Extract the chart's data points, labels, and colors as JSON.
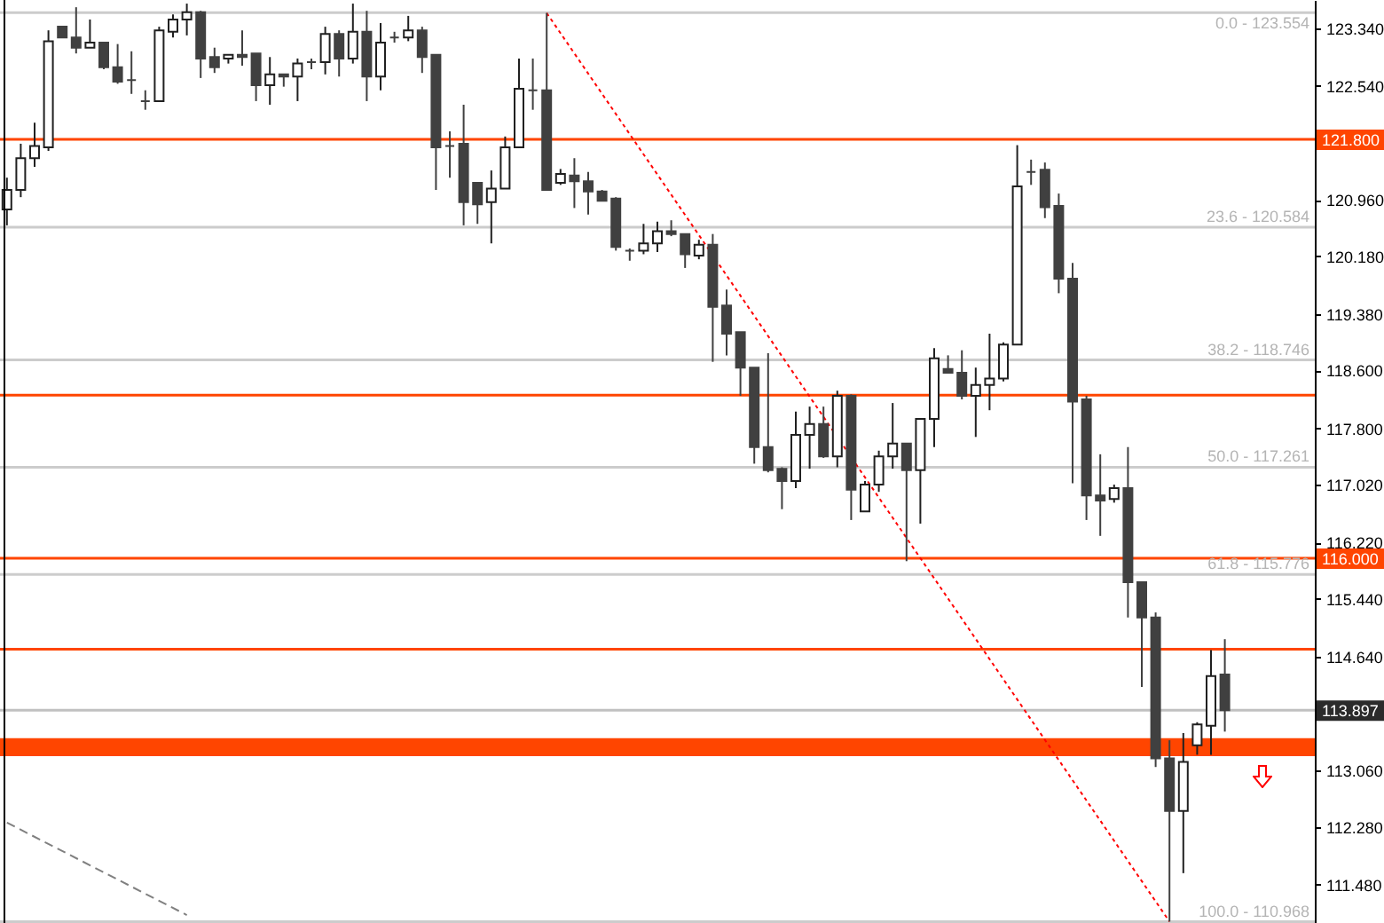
{
  "chart_data": {
    "type": "candlestick",
    "categories": [
      null,
      null,
      null,
      null,
      null,
      null,
      null,
      null,
      null,
      null,
      null,
      null,
      null,
      null,
      null,
      null,
      null,
      null,
      null,
      null,
      null,
      null,
      null,
      null,
      null,
      null,
      null,
      null,
      null,
      null,
      null,
      null,
      null,
      null,
      null,
      null,
      null,
      null,
      null,
      null,
      null,
      null,
      null,
      null,
      null,
      null,
      null,
      null,
      null,
      null,
      null,
      null,
      null,
      null,
      null,
      null,
      null,
      null,
      null,
      null,
      null,
      null,
      null,
      null,
      null,
      null,
      null,
      null,
      null,
      null,
      null,
      null,
      null,
      null,
      null,
      null,
      null,
      null,
      null,
      null,
      null,
      null,
      null,
      null,
      null,
      null,
      null,
      null,
      null,
      null,
      null,
      null,
      null,
      null,
      null
    ],
    "ohlc": [
      [
        120.83,
        121.27,
        120.61,
        121.1
      ],
      [
        121.1,
        121.74,
        121.0,
        121.54
      ],
      [
        121.54,
        122.03,
        121.42,
        121.71
      ],
      [
        121.69,
        123.31,
        121.64,
        123.16
      ],
      [
        123.36,
        123.36,
        123.21,
        123.21
      ],
      [
        123.21,
        123.63,
        122.99,
        123.07
      ],
      [
        123.07,
        123.46,
        123.07,
        123.14
      ],
      [
        123.14,
        123.14,
        122.77,
        122.8
      ],
      [
        122.8,
        123.12,
        122.57,
        122.6
      ],
      [
        122.62,
        123.02,
        122.43,
        122.62
      ],
      [
        122.33,
        122.48,
        122.21,
        122.33
      ],
      [
        122.33,
        123.36,
        122.33,
        123.31
      ],
      [
        123.29,
        123.53,
        123.21,
        123.46
      ],
      [
        123.46,
        123.68,
        123.24,
        123.56
      ],
      [
        123.56,
        123.58,
        122.65,
        122.92
      ],
      [
        122.94,
        123.07,
        122.72,
        122.8
      ],
      [
        122.92,
        122.97,
        122.85,
        122.97
      ],
      [
        122.97,
        123.31,
        122.82,
        122.94
      ],
      [
        122.99,
        122.99,
        122.33,
        122.55
      ],
      [
        122.55,
        122.94,
        122.28,
        122.7
      ],
      [
        122.7,
        122.7,
        122.53,
        122.67
      ],
      [
        122.67,
        122.92,
        122.33,
        122.85
      ],
      [
        122.87,
        122.92,
        122.77,
        122.87
      ],
      [
        122.87,
        123.36,
        122.7,
        123.26
      ],
      [
        123.26,
        123.31,
        122.67,
        122.92
      ],
      [
        122.92,
        123.68,
        122.85,
        123.29
      ],
      [
        123.29,
        123.58,
        122.33,
        122.67
      ],
      [
        122.67,
        123.41,
        122.48,
        123.14
      ],
      [
        123.21,
        123.29,
        123.14,
        123.21
      ],
      [
        123.21,
        123.51,
        123.16,
        123.31
      ],
      [
        123.31,
        123.36,
        122.72,
        122.94
      ],
      [
        122.97,
        122.97,
        121.1,
        121.69
      ],
      [
        121.71,
        121.91,
        121.27,
        121.71
      ],
      [
        121.74,
        122.28,
        120.61,
        120.93
      ],
      [
        121.2,
        121.2,
        120.63,
        120.9
      ],
      [
        120.93,
        121.37,
        120.36,
        121.12
      ],
      [
        121.12,
        121.84,
        121.12,
        121.69
      ],
      [
        121.69,
        122.92,
        121.69,
        122.5
      ],
      [
        122.48,
        122.92,
        122.21,
        122.48
      ],
      [
        122.48,
        123.55,
        121.1,
        121.1
      ],
      [
        121.2,
        121.39,
        121.17,
        121.32
      ],
      [
        121.3,
        121.54,
        120.85,
        121.22
      ],
      [
        121.22,
        121.35,
        120.76,
        121.08
      ],
      [
        121.08,
        121.1,
        120.95,
        120.95
      ],
      [
        120.98,
        121.0,
        120.26,
        120.31
      ],
      [
        120.26,
        120.29,
        120.12,
        120.26
      ],
      [
        120.26,
        120.63,
        120.21,
        120.36
      ],
      [
        120.36,
        120.66,
        120.24,
        120.53
      ],
      [
        120.53,
        120.68,
        120.46,
        120.49
      ],
      [
        120.49,
        120.49,
        120.02,
        120.21
      ],
      [
        120.19,
        120.41,
        120.14,
        120.34
      ],
      [
        120.34,
        120.49,
        118.72,
        119.48
      ],
      [
        119.5,
        119.72,
        118.81,
        119.11
      ],
      [
        119.13,
        119.13,
        118.25,
        118.64
      ],
      [
        118.64,
        118.64,
        117.31,
        117.54
      ],
      [
        117.54,
        118.84,
        117.19,
        117.22
      ],
      [
        117.24,
        117.26,
        116.68,
        117.07
      ],
      [
        117.07,
        118.03,
        116.97,
        117.71
      ],
      [
        117.71,
        118.1,
        117.24,
        117.86
      ],
      [
        117.86,
        118.1,
        117.39,
        117.41
      ],
      [
        117.41,
        118.32,
        117.26,
        118.25
      ],
      [
        118.25,
        118.27,
        116.53,
        116.95
      ],
      [
        116.65,
        117.07,
        116.65,
        117.02
      ],
      [
        117.02,
        117.49,
        116.92,
        117.41
      ],
      [
        117.41,
        118.15,
        117.24,
        117.59
      ],
      [
        117.59,
        117.59,
        115.96,
        117.22
      ],
      [
        117.22,
        117.93,
        116.48,
        117.93
      ],
      [
        117.93,
        118.91,
        117.54,
        118.77
      ],
      [
        118.62,
        118.81,
        118.57,
        118.57
      ],
      [
        118.57,
        118.88,
        118.2,
        118.25
      ],
      [
        118.25,
        118.64,
        117.68,
        118.4
      ],
      [
        118.4,
        119.11,
        118.05,
        118.49
      ],
      [
        118.49,
        118.99,
        118.45,
        118.96
      ],
      [
        118.96,
        121.72,
        118.96,
        121.15
      ],
      [
        121.35,
        121.52,
        121.17,
        121.35
      ],
      [
        121.38,
        121.48,
        120.71,
        120.86
      ],
      [
        120.88,
        121.05,
        119.67,
        119.87
      ],
      [
        119.87,
        120.09,
        117.04,
        118.17
      ],
      [
        118.2,
        118.25,
        116.53,
        116.87
      ],
      [
        116.87,
        117.44,
        116.31,
        116.8
      ],
      [
        116.82,
        117.02,
        116.77,
        116.97
      ],
      [
        116.97,
        117.54,
        115.18,
        115.67
      ],
      [
        115.67,
        115.67,
        114.22,
        115.18
      ],
      [
        115.18,
        115.25,
        113.11,
        113.23
      ],
      [
        113.23,
        113.48,
        110.97,
        112.5
      ],
      [
        112.5,
        113.58,
        111.64,
        113.18
      ],
      [
        113.41,
        113.73,
        113.28,
        113.7
      ],
      [
        113.68,
        114.73,
        113.28,
        114.37
      ],
      [
        114.39,
        114.88,
        113.6,
        113.897
      ],
      null,
      null,
      null,
      null,
      null,
      null
    ],
    "colors": [
      "#ffffff",
      "#ffffff",
      "#ffffff",
      "#ffffff",
      "#404040",
      "#404040",
      "#ffffff",
      "#404040",
      "#404040",
      "#404040",
      "#404040",
      "#ffffff",
      "#ffffff",
      "#ffffff",
      "#404040",
      "#404040",
      "#ffffff",
      "#404040",
      "#404040",
      "#ffffff",
      "#404040",
      "#ffffff",
      "#404040",
      "#ffffff",
      "#404040",
      "#ffffff",
      "#404040",
      "#ffffff",
      "#404040",
      "#ffffff",
      "#404040",
      "#404040",
      "#404040",
      "#404040",
      "#404040",
      "#ffffff",
      "#ffffff",
      "#ffffff",
      "#404040",
      "#404040",
      "#ffffff",
      "#404040",
      "#404040",
      "#404040",
      "#404040",
      "#404040",
      "#ffffff",
      "#ffffff",
      "#404040",
      "#404040",
      "#ffffff",
      "#404040",
      "#404040",
      "#404040",
      "#404040",
      "#404040",
      "#404040",
      "#ffffff",
      "#ffffff",
      "#404040",
      "#ffffff",
      "#404040",
      "#ffffff",
      "#ffffff",
      "#ffffff",
      "#404040",
      "#ffffff",
      "#ffffff",
      "#404040",
      "#404040",
      "#ffffff",
      "#ffffff",
      "#ffffff",
      "#ffffff",
      "#404040",
      "#404040",
      "#404040",
      "#404040",
      "#404040",
      "#404040",
      "#ffffff",
      "#404040",
      "#404040",
      "#404040",
      "#404040",
      "#ffffff",
      "#ffffff",
      "#ffffff",
      "#404040",
      null,
      null,
      null,
      null,
      null,
      null
    ],
    "series": [
      {
        "type": "line",
        "color": "#ff0000",
        "line_style": "dotted",
        "values": [
          null,
          null,
          null,
          null,
          null,
          null,
          null,
          null,
          null,
          null,
          null,
          null,
          null,
          null,
          null,
          null,
          null,
          null,
          null,
          null,
          null,
          null,
          null,
          null,
          null,
          null,
          null,
          null,
          null,
          null,
          null,
          null,
          null,
          null,
          null,
          null,
          null,
          null,
          null,
          123.55,
          null,
          null,
          null,
          null,
          null,
          null,
          null,
          null,
          null,
          null,
          null,
          null,
          null,
          null,
          null,
          null,
          null,
          null,
          null,
          null,
          null,
          null,
          null,
          null,
          null,
          null,
          null,
          null,
          null,
          null,
          null,
          null,
          null,
          null,
          null,
          null,
          null,
          null,
          null,
          null,
          null,
          null,
          null,
          null,
          110.97,
          null,
          null,
          null,
          null,
          null,
          null,
          null,
          null,
          null,
          null
        ]
      },
      {
        "type": "line",
        "color": "#808080",
        "line_style": "dashed",
        "values": [
          112.34,
          null,
          null,
          null,
          null,
          null,
          null,
          null,
          null,
          null,
          null,
          null,
          null,
          111.06,
          null,
          null,
          null,
          null,
          null,
          null,
          null,
          null,
          null,
          null,
          null,
          null,
          null,
          null,
          null,
          null,
          null,
          null,
          null,
          null,
          null,
          null,
          null,
          null,
          null,
          null,
          null,
          null,
          null,
          null,
          null,
          null,
          null,
          null,
          null,
          null,
          null,
          null,
          null,
          null,
          null,
          null,
          null,
          null,
          null,
          null,
          null,
          null,
          null,
          null,
          null,
          null,
          null,
          null,
          null,
          null,
          null,
          null,
          null,
          null,
          null,
          null,
          null,
          null,
          null,
          null,
          null,
          null,
          null,
          null,
          null,
          null,
          null,
          null,
          null,
          null,
          null,
          null,
          null,
          null,
          null
        ]
      }
    ],
    "ylim": [
      110.95,
      123.73
    ],
    "yticks": [
      {
        "value": 123.34,
        "label": "123.340"
      },
      {
        "value": 122.54,
        "label": "122.540"
      },
      {
        "value": 120.96,
        "label": "120.960"
      },
      {
        "value": 120.18,
        "label": "120.180"
      },
      {
        "value": 119.38,
        "label": "119.380"
      },
      {
        "value": 118.6,
        "label": "118.600"
      },
      {
        "value": 117.8,
        "label": "117.800"
      },
      {
        "value": 117.02,
        "label": "117.020"
      },
      {
        "value": 116.22,
        "label": "116.220"
      },
      {
        "value": 115.44,
        "label": "115.440"
      },
      {
        "value": 114.64,
        "label": "114.640"
      },
      {
        "value": 113.06,
        "label": "113.060"
      },
      {
        "value": 112.28,
        "label": "112.280"
      },
      {
        "value": 111.48,
        "label": "111.480"
      }
    ],
    "tick_labels": "y",
    "grid": false,
    "bands": [
      {
        "axis": "y",
        "from": 113.26,
        "to": 113.51,
        "color": "#ff4500"
      }
    ],
    "ref_lines": [
      {
        "axis": "y",
        "value": 123.554,
        "color": "#cccccc"
      },
      {
        "axis": "y",
        "value": 120.584,
        "color": "#cccccc"
      },
      {
        "axis": "y",
        "value": 118.746,
        "color": "#cccccc"
      },
      {
        "axis": "y",
        "value": 117.261,
        "color": "#cccccc"
      },
      {
        "axis": "y",
        "value": 115.776,
        "color": "#cccccc"
      },
      {
        "axis": "y",
        "value": 110.968,
        "color": "#cccccc"
      },
      {
        "axis": "y",
        "value": 113.897,
        "label": "113.897",
        "color": "#c0c0c0"
      },
      {
        "axis": "y",
        "value": 121.8,
        "label": "121.800",
        "color": "#ff4500"
      },
      {
        "axis": "y",
        "value": 116,
        "label": "116.000",
        "color": "#ff4500"
      },
      {
        "axis": "y",
        "value": 118.26,
        "color": "#ff4500"
      },
      {
        "axis": "y",
        "value": 114.74,
        "color": "#ff4500"
      }
    ],
    "annotations": [
      {
        "text": "0.0 - 123.554",
        "y": 123.554
      },
      {
        "text": "23.6 - 120.584",
        "y": 120.584
      },
      {
        "text": "38.2 - 118.746",
        "y": 118.746
      },
      {
        "text": "50.0 - 117.261",
        "y": 117.261
      },
      {
        "text": "61.8 - 115.776",
        "y": 115.776
      },
      {
        "text": "100.0 - 110.968",
        "y": 110.968
      }
    ]
  }
}
